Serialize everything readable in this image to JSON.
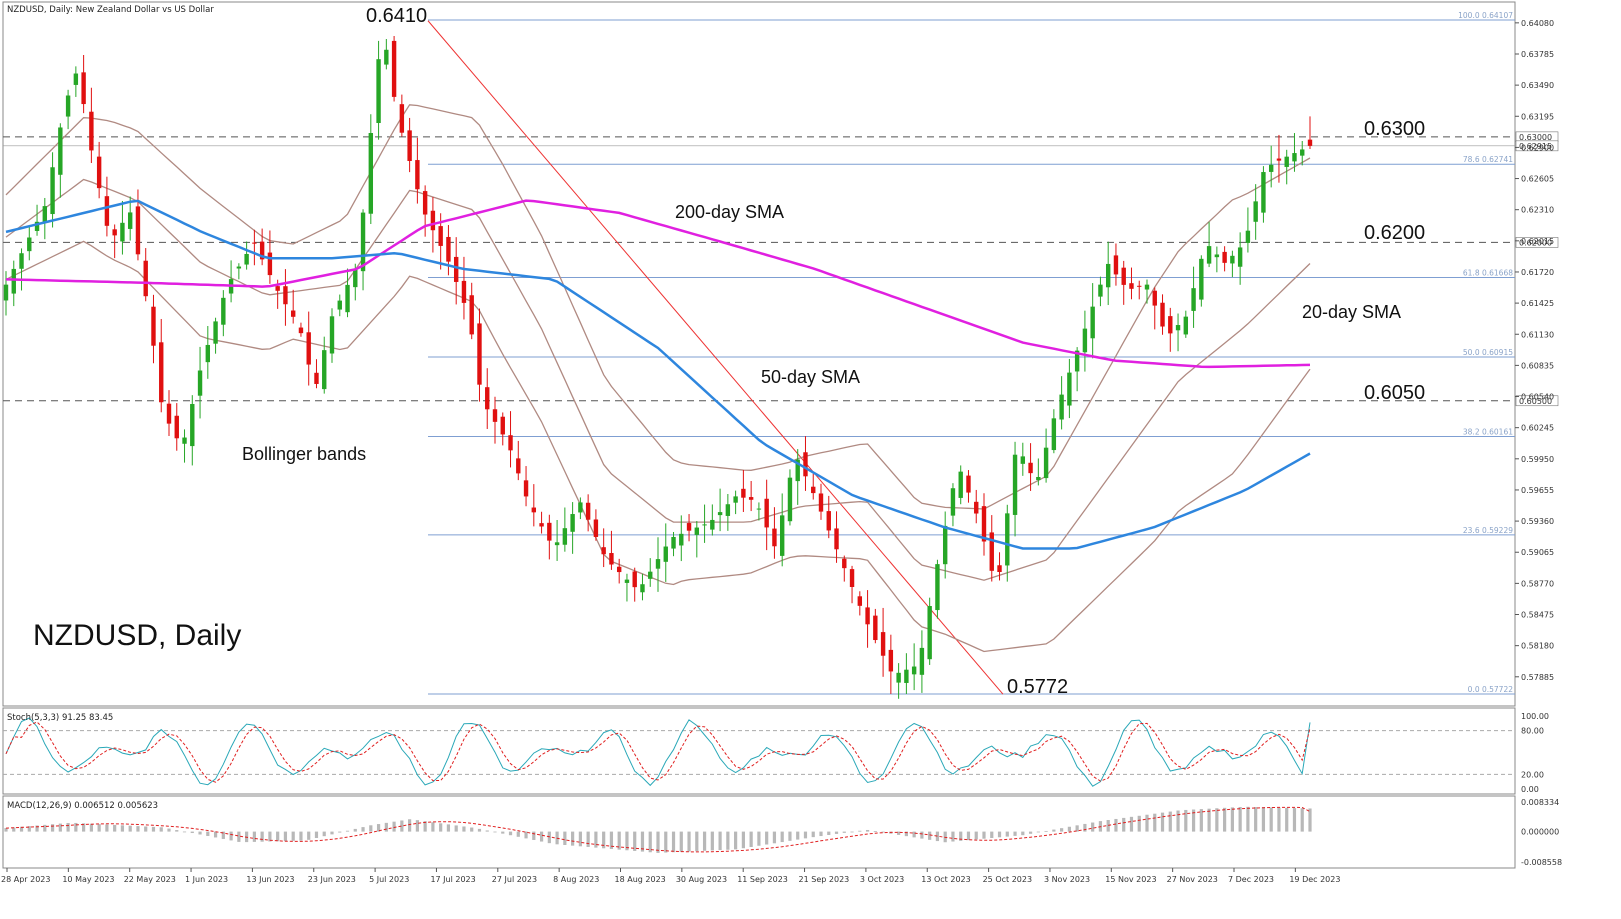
{
  "chart_data": {
    "type": "candlestick",
    "symbol_header": "NZDUSD, Daily:  New Zealand Dollar vs US Dollar",
    "title": "NZDUSD, Daily",
    "price_ylim": [
      0.5772,
      0.641
    ],
    "price_ticks": [
      "0.64080",
      "0.63785",
      "0.63490",
      "0.63195",
      "0.62900",
      "0.62605",
      "0.62310",
      "0.62015",
      "0.61720",
      "0.61425",
      "0.61130",
      "0.60835",
      "0.60540",
      "0.60245",
      "0.59950",
      "0.59655",
      "0.59360",
      "0.59065",
      "0.58770",
      "0.58475",
      "0.58180",
      "0.57885"
    ],
    "x_labels": [
      "28 Apr 2023",
      "10 May 2023",
      "22 May 2023",
      "1 Jun 2023",
      "13 Jun 2023",
      "23 Jun 2023",
      "5 Jul 2023",
      "17 Jul 2023",
      "27 Jul 2023",
      "8 Aug 2023",
      "18 Aug 2023",
      "30 Aug 2023",
      "11 Sep 2023",
      "21 Sep 2023",
      "3 Oct 2023",
      "13 Oct 2023",
      "25 Oct 2023",
      "3 Nov 2023",
      "15 Nov 2023",
      "27 Nov 2023",
      "7 Dec 2023",
      "19 Dec 2023"
    ],
    "horizontal_levels": [
      {
        "label": "0.6300",
        "value": 0.63,
        "tag": "0.63000"
      },
      {
        "label": "0.6200",
        "value": 0.62,
        "tag": "0.62000"
      },
      {
        "label": "0.6050",
        "value": 0.605,
        "tag": "0.60500"
      }
    ],
    "fibonacci": [
      {
        "label": "100.0 0.64107",
        "value": 0.64107
      },
      {
        "label": "78.6 0.62741",
        "value": 0.62741
      },
      {
        "label": "61.8 0.61668",
        "value": 0.61668
      },
      {
        "label": "50.0 0.60915",
        "value": 0.60915
      },
      {
        "label": "38.2 0.60161",
        "value": 0.60161
      },
      {
        "label": "23.6 0.59229",
        "value": 0.59229
      },
      {
        "label": "0.0 0.57722",
        "value": 0.57722
      }
    ],
    "last_price_tag": "0.62915",
    "last_price": 0.62915,
    "annotations": {
      "high": "0.6410",
      "low": "0.5772",
      "sma200": "200-day SMA",
      "sma50": "50-day SMA",
      "sma20": "20-day SMA",
      "bollinger": "Bollinger bands"
    },
    "stoch": {
      "header": "Stoch(5,3,3) 91.25 83.45",
      "ticks": [
        "100.00",
        "80.00",
        "20.00",
        "0.00"
      ],
      "levels": [
        80,
        20
      ]
    },
    "macd": {
      "header": "MACD(12,26,9) 0.006512 0.005623",
      "ticks": [
        "0.008334",
        "0.000000",
        "-0.008558"
      ],
      "ylim": [
        -0.008558,
        0.008334
      ]
    },
    "colors": {
      "bull": "#26a626",
      "bear": "#e01010",
      "sma200": "#e020e0",
      "sma50": "#2e86de",
      "bollinger": "#b08a82",
      "fib": "#7f9fd2",
      "trend": "#ee3333",
      "stoch_main": "#2aa8b8",
      "stoch_signal": "#e02020",
      "macd_hist": "#b8b8b8",
      "macd_signal": "#e02020"
    }
  }
}
